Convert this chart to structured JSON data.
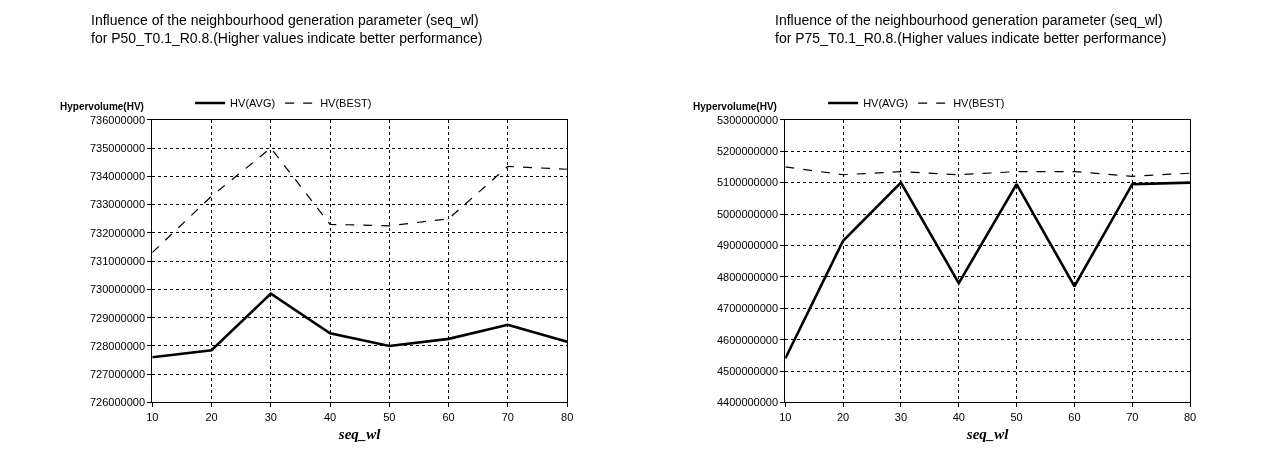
{
  "chart_data": [
    {
      "type": "line",
      "title": "Influence of the neighbourhood generation parameter (seq_wl)\nfor P50_T0.1_R0.8.(Higher values indicate better performance)",
      "xlabel": "seq_wl",
      "ylabel": "Hypervolume(HV)",
      "x": [
        10,
        20,
        30,
        40,
        50,
        60,
        70,
        80
      ],
      "series": [
        {
          "name": "HV(AVG)",
          "color": "#000000",
          "line_style": "solid",
          "values": [
            727600000,
            727850000,
            729850000,
            728450000,
            728000000,
            728250000,
            728750000,
            728150000
          ]
        },
        {
          "name": "HV(BEST)",
          "color": "#000000",
          "line_style": "dashed",
          "values": [
            731300000,
            733300000,
            735000000,
            732300000,
            732250000,
            732500000,
            734350000,
            734250000
          ]
        }
      ],
      "xlim": [
        10,
        80
      ],
      "xticks": [
        10,
        20,
        30,
        40,
        50,
        60,
        70,
        80
      ],
      "ylim": [
        726000000,
        736000000
      ],
      "yticks": [
        726000000,
        727000000,
        728000000,
        729000000,
        730000000,
        731000000,
        732000000,
        733000000,
        734000000,
        735000000,
        736000000
      ],
      "grid": true,
      "legend": "top",
      "marker": "none"
    },
    {
      "type": "line",
      "title": "Influence of the neighbourhood generation parameter (seq_wl)\nfor P75_T0.1_R0.8.(Higher values indicate better performance)",
      "xlabel": "seq_wl",
      "ylabel": "Hypervolume(HV)",
      "x": [
        10,
        20,
        30,
        40,
        50,
        60,
        70,
        80
      ],
      "series": [
        {
          "name": "HV(AVG)",
          "color": "#000000",
          "line_style": "solid",
          "values": [
            4540000000,
            4915000000,
            5100000000,
            4780000000,
            5095000000,
            4770000000,
            5095000000,
            5100000000
          ]
        },
        {
          "name": "HV(BEST)",
          "color": "#000000",
          "line_style": "dashed",
          "values": [
            5150000000,
            5125000000,
            5135000000,
            5125000000,
            5135000000,
            5135000000,
            5120000000,
            5130000000
          ]
        }
      ],
      "xlim": [
        10,
        80
      ],
      "xticks": [
        10,
        20,
        30,
        40,
        50,
        60,
        70,
        80
      ],
      "ylim": [
        4400000000,
        5300000000
      ],
      "yticks": [
        4400000000,
        4500000000,
        4600000000,
        4700000000,
        4800000000,
        4900000000,
        5000000000,
        5100000000,
        5200000000,
        5300000000
      ],
      "grid": true,
      "legend": "top",
      "marker": "none"
    }
  ]
}
